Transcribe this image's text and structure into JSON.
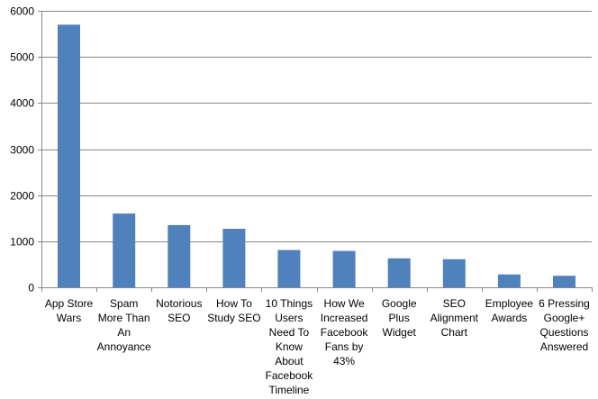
{
  "chart_data": {
    "type": "bar",
    "title": "",
    "xlabel": "",
    "ylabel": "",
    "ylim": [
      0,
      6000
    ],
    "yticks": [
      0,
      1000,
      2000,
      3000,
      4000,
      5000,
      6000
    ],
    "grid": true,
    "legend": "none",
    "bar_color": "#4f81bd",
    "gridline_color": "#868686",
    "categories": [
      "App Store Wars",
      "Spam More Than An Annoyance",
      "Notorious SEO",
      "How To Study SEO",
      "10 Things Users Need To Know About Facebook Timeline",
      "How We Increased Facebook Fans by 43%",
      "Google Plus Widget",
      "SEO Alignment Chart",
      "Employee Awards",
      "6 Pressing Google+ Questions Answered"
    ],
    "category_lines": [
      [
        "App Store",
        "Wars"
      ],
      [
        "Spam",
        "More Than",
        "An",
        "Annoyance"
      ],
      [
        "Notorious",
        "SEO"
      ],
      [
        "How To",
        "Study SEO"
      ],
      [
        "10 Things",
        "Users",
        "Need To",
        "Know",
        "About",
        "Facebook",
        "Timeline"
      ],
      [
        "How We",
        "Increased",
        "Facebook",
        "Fans by",
        "43%"
      ],
      [
        "Google",
        "Plus",
        "Widget"
      ],
      [
        "SEO",
        "Alignment",
        "Chart"
      ],
      [
        "Employee",
        "Awards"
      ],
      [
        "6 Pressing",
        "Google+",
        "Questions",
        "Answered"
      ]
    ],
    "values": [
      5700,
      1600,
      1350,
      1270,
      810,
      790,
      630,
      610,
      280,
      250
    ]
  }
}
